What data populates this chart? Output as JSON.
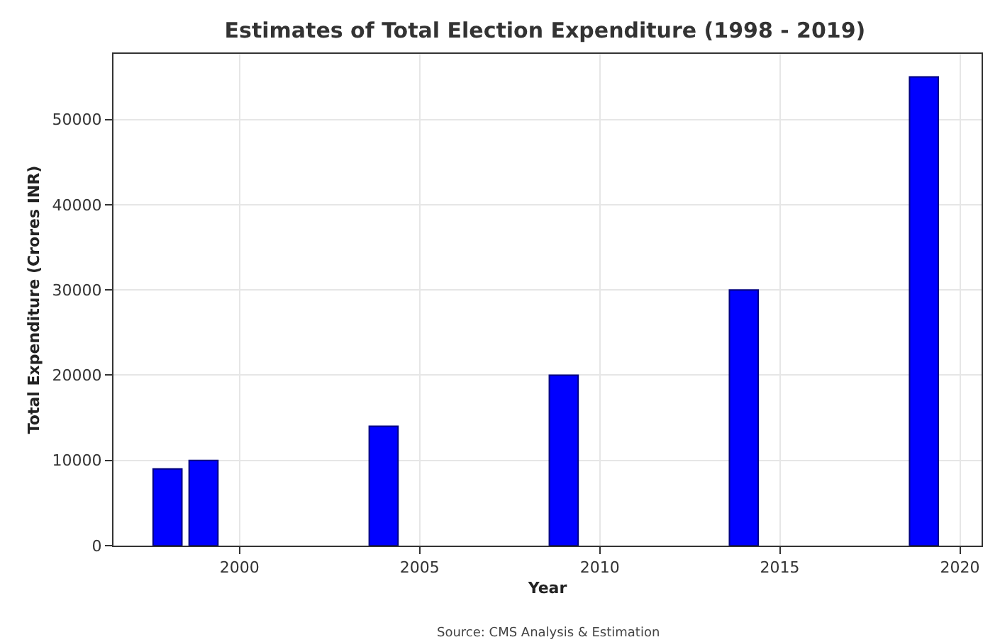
{
  "chart_data": {
    "type": "bar",
    "title": "Estimates of Total Election Expenditure (1998 - 2019)",
    "xlabel": "Year",
    "ylabel": "Total Expenditure (Crores INR)",
    "x": [
      1998,
      1999,
      2004,
      2009,
      2014,
      2019
    ],
    "series": [
      {
        "color": "#0000ff",
        "values": [
          9000,
          10000,
          14000,
          20000,
          30000,
          55000
        ]
      }
    ],
    "xlim": [
      1996.5,
      2020.6
    ],
    "xticks": [
      2000,
      2005,
      2010,
      2015,
      2020
    ],
    "ylim": [
      0,
      57700
    ],
    "yticks": [
      0,
      10000,
      20000,
      30000,
      40000,
      50000
    ],
    "grid": true,
    "annotations": [
      "Source: CMS Analysis & Estimation"
    ]
  }
}
